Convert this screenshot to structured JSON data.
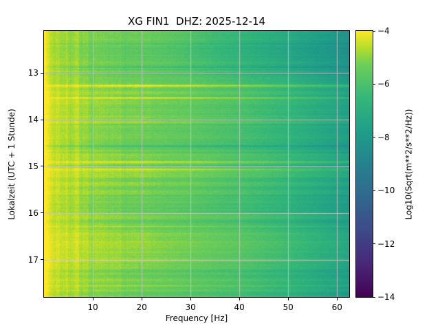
{
  "chart_data": {
    "type": "heatmap",
    "subtype": "spectrogram",
    "title": "XG FIN1  DHZ: 2025-12-14",
    "xlabel": "Frequency [Hz]",
    "ylabel": "Lokalzeit (UTC + 1 Stunde)",
    "colorbar_label": "Log10(Sqrt(m**2/s**2/Hz))",
    "colormap": "viridis",
    "grid": true,
    "grid_color": "#c8c8c8",
    "x_range": [
      0,
      62.5
    ],
    "y_range": [
      12.1,
      17.8
    ],
    "color_range": [
      -14,
      -4
    ],
    "x_ticks": [
      10,
      20,
      30,
      40,
      50,
      60
    ],
    "x_tick_labels": [
      "10",
      "20",
      "30",
      "40",
      "50",
      "60"
    ],
    "y_ticks": [
      13,
      14,
      15,
      16,
      17
    ],
    "y_tick_labels": [
      "13",
      "14",
      "15",
      "16",
      "17"
    ],
    "colorbar_ticks": [
      -4,
      -6,
      -8,
      -10,
      -12,
      -14
    ],
    "colorbar_tick_labels": [
      "−4",
      "−6",
      "−8",
      "−10",
      "−12",
      "−14"
    ],
    "frequencies": [
      0.5,
      3,
      6,
      10,
      15,
      20,
      25,
      30,
      35,
      40,
      45,
      50,
      55,
      60,
      62
    ],
    "times": [
      12.3,
      12.8,
      13.2,
      13.6,
      14.0,
      14.5,
      15.0,
      15.5,
      16.0,
      16.5,
      17.0,
      17.6
    ],
    "values": [
      [
        -4.4,
        -4.8,
        -5.0,
        -5.2,
        -5.3,
        -5.4,
        -5.6,
        -5.9,
        -6.3,
        -6.6,
        -6.9,
        -7.2,
        -7.6,
        -8.0,
        -8.2
      ],
      [
        -4.3,
        -4.7,
        -4.9,
        -5.1,
        -5.2,
        -5.4,
        -5.5,
        -5.8,
        -6.1,
        -6.4,
        -6.7,
        -7.0,
        -7.4,
        -7.8,
        -8.0
      ],
      [
        -4.4,
        -4.8,
        -5.0,
        -5.2,
        -5.3,
        -5.4,
        -5.6,
        -5.7,
        -6.0,
        -6.2,
        -6.5,
        -6.8,
        -7.2,
        -7.6,
        -7.8
      ],
      [
        -4.1,
        -4.5,
        -4.7,
        -4.9,
        -5.0,
        -5.2,
        -5.3,
        -5.5,
        -5.7,
        -5.9,
        -6.2,
        -6.5,
        -6.9,
        -7.3,
        -7.5
      ],
      [
        -4.2,
        -4.6,
        -4.8,
        -5.0,
        -5.1,
        -5.2,
        -5.4,
        -5.5,
        -5.8,
        -6.0,
        -6.3,
        -6.6,
        -7.0,
        -7.4,
        -7.6
      ],
      [
        -4.2,
        -4.6,
        -4.8,
        -5.0,
        -5.1,
        -5.3,
        -5.4,
        -5.6,
        -5.8,
        -6.0,
        -6.3,
        -6.6,
        -7.0,
        -7.4,
        -7.6
      ],
      [
        -4.2,
        -4.6,
        -4.8,
        -4.9,
        -5.1,
        -5.2,
        -5.4,
        -5.5,
        -5.7,
        -6.0,
        -6.2,
        -6.5,
        -6.9,
        -7.3,
        -7.5
      ],
      [
        -4.1,
        -4.5,
        -4.7,
        -4.9,
        -5.0,
        -5.1,
        -5.3,
        -5.4,
        -5.7,
        -5.9,
        -6.2,
        -6.5,
        -6.9,
        -7.3,
        -7.5
      ],
      [
        -4.2,
        -4.6,
        -4.8,
        -5.0,
        -5.1,
        -5.3,
        -5.4,
        -5.6,
        -5.8,
        -6.0,
        -6.3,
        -6.6,
        -7.0,
        -7.4,
        -7.6
      ],
      [
        -4.2,
        -4.5,
        -4.7,
        -4.9,
        -5.1,
        -5.2,
        -5.4,
        -5.5,
        -5.7,
        -5.9,
        -6.2,
        -6.5,
        -6.9,
        -7.3,
        -7.5
      ],
      [
        -4.1,
        -4.5,
        -4.7,
        -4.9,
        -5.0,
        -5.2,
        -5.3,
        -5.5,
        -5.7,
        -5.9,
        -6.2,
        -6.5,
        -6.9,
        -7.3,
        -7.5
      ],
      [
        -4.2,
        -4.6,
        -4.8,
        -5.0,
        -5.1,
        -5.3,
        -5.4,
        -5.6,
        -5.8,
        -6.0,
        -6.3,
        -6.6,
        -7.0,
        -7.4,
        -7.6
      ]
    ]
  }
}
